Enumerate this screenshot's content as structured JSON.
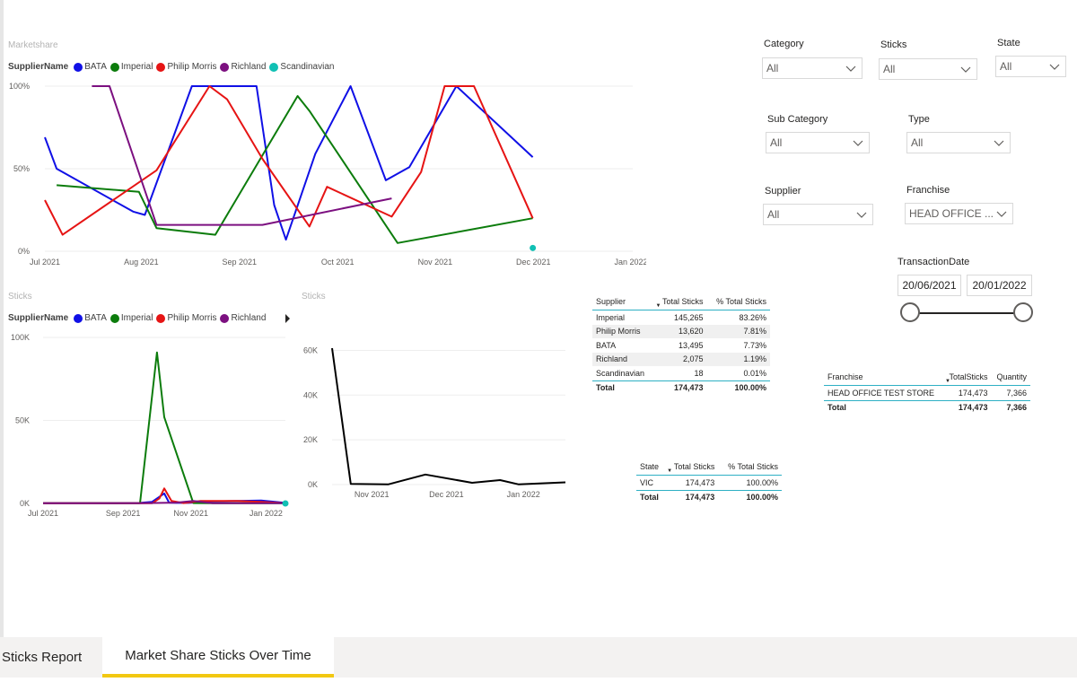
{
  "colors": {
    "BATA": "#1010e6",
    "Imperial": "#0c7c0c",
    "Philip Morris": "#e61414",
    "Richland": "#7c1080",
    "Scandinavian": "#11c0b4",
    "line": "#000000",
    "accent": "#2eb0c4",
    "tab_accent": "#f2c811"
  },
  "legend": {
    "label": "SupplierName",
    "items": [
      {
        "name": "BATA",
        "color": "#1010e6"
      },
      {
        "name": "Imperial",
        "color": "#0c7c0c"
      },
      {
        "name": "Philip Morris",
        "color": "#e61414"
      },
      {
        "name": "Richland",
        "color": "#7c1080"
      },
      {
        "name": "Scandinavian",
        "color": "#11c0b4"
      }
    ]
  },
  "chart_data": [
    {
      "type": "line",
      "title": "Marketshare",
      "x_ticks": [
        "Jul 2021",
        "Aug 2021",
        "Sep 2021",
        "Oct 2021",
        "Nov 2021",
        "Dec 2021",
        "Jan 2022"
      ],
      "y_ticks": [
        "0%",
        "50%",
        "100%"
      ],
      "ylim": [
        0,
        100
      ],
      "series": [
        {
          "name": "BATA",
          "points": [
            [
              0,
              69
            ],
            [
              2,
              50
            ],
            [
              15,
              24
            ],
            [
              17,
              22
            ],
            [
              25,
              100
            ],
            [
              36,
              100
            ],
            [
              39,
              28
            ],
            [
              41,
              7
            ],
            [
              46,
              59
            ],
            [
              52,
              100
            ],
            [
              58,
              43
            ],
            [
              62,
              51
            ],
            [
              70,
              100
            ],
            [
              83,
              57
            ]
          ]
        },
        {
          "name": "Imperial",
          "points": [
            [
              2,
              40
            ],
            [
              16,
              36
            ],
            [
              19,
              14
            ],
            [
              29,
              10
            ],
            [
              43,
              94
            ],
            [
              45,
              85
            ],
            [
              60,
              5
            ],
            [
              83,
              20
            ]
          ]
        },
        {
          "name": "Philip Morris",
          "points": [
            [
              0,
              31
            ],
            [
              3,
              10
            ],
            [
              19,
              49
            ],
            [
              28,
              100
            ],
            [
              31,
              92
            ],
            [
              37,
              56
            ],
            [
              45,
              15
            ],
            [
              48,
              39
            ],
            [
              59,
              21
            ],
            [
              64,
              48
            ],
            [
              68,
              100
            ],
            [
              73,
              100
            ],
            [
              83,
              20
            ]
          ]
        },
        {
          "name": "Richland",
          "points": [
            [
              8,
              100
            ],
            [
              11,
              100
            ],
            [
              19,
              16
            ],
            [
              37,
              16
            ],
            [
              59,
              32
            ]
          ]
        },
        {
          "name": "Scandinavian",
          "points": [
            [
              83,
              2
            ]
          ]
        }
      ]
    },
    {
      "type": "line",
      "title": "Sticks",
      "x_ticks": [
        "Jul 2021",
        "Sep 2021",
        "Nov 2021",
        "Jan 2022"
      ],
      "y_ticks": [
        "0K",
        "50K",
        "100K"
      ],
      "ylim": [
        0,
        100000
      ],
      "series": [
        {
          "name": "BATA",
          "points": [
            [
              0,
              200
            ],
            [
              20,
              200
            ],
            [
              30,
              200
            ],
            [
              40,
              300
            ],
            [
              45,
              1000
            ],
            [
              50,
              6000
            ],
            [
              52,
              500
            ],
            [
              55,
              300
            ],
            [
              60,
              300
            ],
            [
              70,
              1200
            ],
            [
              80,
              1500
            ],
            [
              90,
              1800
            ],
            [
              100,
              300
            ]
          ]
        },
        {
          "name": "Imperial",
          "points": [
            [
              0,
              100
            ],
            [
              20,
              200
            ],
            [
              30,
              100
            ],
            [
              40,
              100
            ],
            [
              47,
              91000
            ],
            [
              50,
              52000
            ],
            [
              62,
              200
            ],
            [
              70,
              100
            ],
            [
              100,
              100
            ]
          ]
        },
        {
          "name": "Philip Morris",
          "points": [
            [
              0,
              100
            ],
            [
              20,
              100
            ],
            [
              30,
              100
            ],
            [
              40,
              100
            ],
            [
              45,
              100
            ],
            [
              48,
              3000
            ],
            [
              50,
              9000
            ],
            [
              53,
              1500
            ],
            [
              58,
              200
            ],
            [
              65,
              1500
            ],
            [
              80,
              1500
            ],
            [
              90,
              1000
            ],
            [
              100,
              100
            ]
          ]
        },
        {
          "name": "Richland",
          "points": [
            [
              0,
              100
            ],
            [
              20,
              100
            ],
            [
              40,
              100
            ],
            [
              55,
              500
            ],
            [
              62,
              1500
            ],
            [
              70,
              100
            ],
            [
              100,
              100
            ]
          ]
        },
        {
          "name": "Scandinavian",
          "points": [
            [
              100,
              18
            ]
          ]
        }
      ]
    },
    {
      "type": "line",
      "title": "Sticks",
      "x_ticks": [
        "Nov 2021",
        "Dec 2021",
        "Jan 2022"
      ],
      "y_ticks": [
        "0K",
        "20K",
        "40K",
        "60K"
      ],
      "ylim": [
        0,
        65000
      ],
      "series": [
        {
          "name": "Total",
          "points": [
            [
              0,
              61000
            ],
            [
              8,
              300
            ],
            [
              24,
              100
            ],
            [
              40,
              4500
            ],
            [
              60,
              800
            ],
            [
              72,
              2000
            ],
            [
              80,
              100
            ],
            [
              100,
              1000
            ]
          ]
        }
      ]
    }
  ],
  "slicers": {
    "category": {
      "title": "Category",
      "value": "All"
    },
    "sticks": {
      "title": "Sticks",
      "value": "All"
    },
    "state": {
      "title": "State",
      "value": "All"
    },
    "sub_category": {
      "title": "Sub Category",
      "value": "All"
    },
    "type": {
      "title": "Type",
      "value": "All"
    },
    "supplier": {
      "title": "Supplier",
      "value": "All"
    },
    "franchise": {
      "title": "Franchise",
      "value": "HEAD OFFICE ..."
    },
    "transaction_date": {
      "title": "TransactionDate",
      "start": "20/06/2021",
      "end": "20/01/2022"
    }
  },
  "supplier_table": {
    "headers": [
      "Supplier",
      "Total Sticks",
      "% Total Sticks"
    ],
    "rows": [
      [
        "Imperial",
        "145,265",
        "83.26%"
      ],
      [
        "Philip Morris",
        "13,620",
        "7.81%"
      ],
      [
        "BATA",
        "13,495",
        "7.73%"
      ],
      [
        "Richland",
        "2,075",
        "1.19%"
      ],
      [
        "Scandinavian",
        "18",
        "0.01%"
      ]
    ],
    "total": [
      "Total",
      "174,473",
      "100.00%"
    ]
  },
  "franchise_table": {
    "headers": [
      "Franchise",
      "TotalSticks",
      "Quantity"
    ],
    "rows": [
      [
        "HEAD OFFICE TEST STORE",
        "174,473",
        "7,366"
      ]
    ],
    "total": [
      "Total",
      "174,473",
      "7,366"
    ]
  },
  "state_table": {
    "headers": [
      "State",
      "Total Sticks",
      "% Total Sticks"
    ],
    "rows": [
      [
        "VIC",
        "174,473",
        "100.00%"
      ]
    ],
    "total": [
      "Total",
      "174,473",
      "100.00%"
    ]
  },
  "tabs": [
    {
      "label": "Sticks Report",
      "active": false
    },
    {
      "label": "Market Share Sticks Over Time",
      "active": true
    }
  ]
}
